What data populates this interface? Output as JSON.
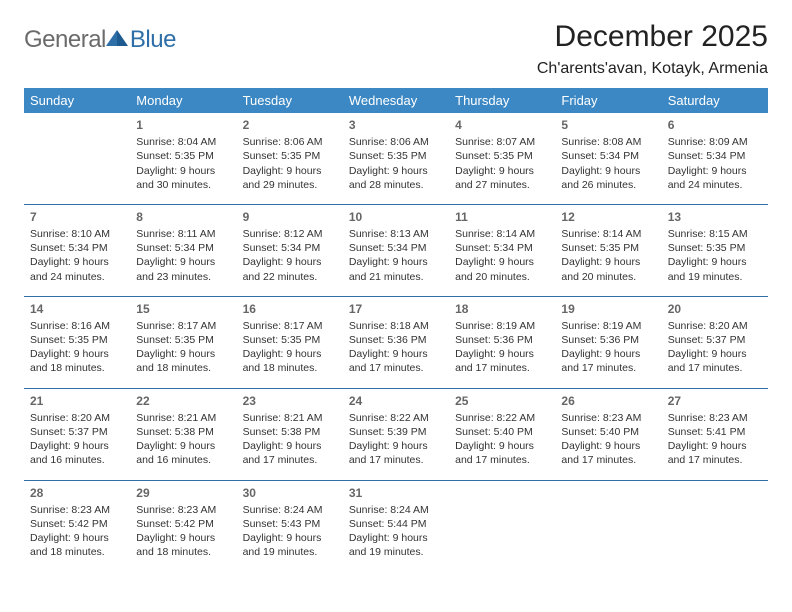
{
  "logo": {
    "general": "General",
    "blue": "Blue"
  },
  "header": {
    "title": "December 2025",
    "subtitle": "Ch'arents'avan, Kotayk, Armenia"
  },
  "styling": {
    "header_bg": "#3b88c4",
    "header_text": "#ffffff",
    "divider_color": "#2f6fa7",
    "daynum_color": "#666666",
    "body_text": "#333333",
    "title_fontsize": 30,
    "subtitle_fontsize": 16,
    "cell_fontsize": 10.5,
    "page_bg": "#ffffff",
    "logo_gray": "#6b6b6b",
    "logo_blue": "#2f6fa7"
  },
  "day_headers": [
    "Sunday",
    "Monday",
    "Tuesday",
    "Wednesday",
    "Thursday",
    "Friday",
    "Saturday"
  ],
  "weeks": [
    [
      null,
      {
        "n": "1",
        "sr": "8:04 AM",
        "ss": "5:35 PM",
        "dl": "9 hours and 30 minutes."
      },
      {
        "n": "2",
        "sr": "8:06 AM",
        "ss": "5:35 PM",
        "dl": "9 hours and 29 minutes."
      },
      {
        "n": "3",
        "sr": "8:06 AM",
        "ss": "5:35 PM",
        "dl": "9 hours and 28 minutes."
      },
      {
        "n": "4",
        "sr": "8:07 AM",
        "ss": "5:35 PM",
        "dl": "9 hours and 27 minutes."
      },
      {
        "n": "5",
        "sr": "8:08 AM",
        "ss": "5:34 PM",
        "dl": "9 hours and 26 minutes."
      },
      {
        "n": "6",
        "sr": "8:09 AM",
        "ss": "5:34 PM",
        "dl": "9 hours and 24 minutes."
      }
    ],
    [
      {
        "n": "7",
        "sr": "8:10 AM",
        "ss": "5:34 PM",
        "dl": "9 hours and 24 minutes."
      },
      {
        "n": "8",
        "sr": "8:11 AM",
        "ss": "5:34 PM",
        "dl": "9 hours and 23 minutes."
      },
      {
        "n": "9",
        "sr": "8:12 AM",
        "ss": "5:34 PM",
        "dl": "9 hours and 22 minutes."
      },
      {
        "n": "10",
        "sr": "8:13 AM",
        "ss": "5:34 PM",
        "dl": "9 hours and 21 minutes."
      },
      {
        "n": "11",
        "sr": "8:14 AM",
        "ss": "5:34 PM",
        "dl": "9 hours and 20 minutes."
      },
      {
        "n": "12",
        "sr": "8:14 AM",
        "ss": "5:35 PM",
        "dl": "9 hours and 20 minutes."
      },
      {
        "n": "13",
        "sr": "8:15 AM",
        "ss": "5:35 PM",
        "dl": "9 hours and 19 minutes."
      }
    ],
    [
      {
        "n": "14",
        "sr": "8:16 AM",
        "ss": "5:35 PM",
        "dl": "9 hours and 18 minutes."
      },
      {
        "n": "15",
        "sr": "8:17 AM",
        "ss": "5:35 PM",
        "dl": "9 hours and 18 minutes."
      },
      {
        "n": "16",
        "sr": "8:17 AM",
        "ss": "5:35 PM",
        "dl": "9 hours and 18 minutes."
      },
      {
        "n": "17",
        "sr": "8:18 AM",
        "ss": "5:36 PM",
        "dl": "9 hours and 17 minutes."
      },
      {
        "n": "18",
        "sr": "8:19 AM",
        "ss": "5:36 PM",
        "dl": "9 hours and 17 minutes."
      },
      {
        "n": "19",
        "sr": "8:19 AM",
        "ss": "5:36 PM",
        "dl": "9 hours and 17 minutes."
      },
      {
        "n": "20",
        "sr": "8:20 AM",
        "ss": "5:37 PM",
        "dl": "9 hours and 17 minutes."
      }
    ],
    [
      {
        "n": "21",
        "sr": "8:20 AM",
        "ss": "5:37 PM",
        "dl": "9 hours and 16 minutes."
      },
      {
        "n": "22",
        "sr": "8:21 AM",
        "ss": "5:38 PM",
        "dl": "9 hours and 16 minutes."
      },
      {
        "n": "23",
        "sr": "8:21 AM",
        "ss": "5:38 PM",
        "dl": "9 hours and 17 minutes."
      },
      {
        "n": "24",
        "sr": "8:22 AM",
        "ss": "5:39 PM",
        "dl": "9 hours and 17 minutes."
      },
      {
        "n": "25",
        "sr": "8:22 AM",
        "ss": "5:40 PM",
        "dl": "9 hours and 17 minutes."
      },
      {
        "n": "26",
        "sr": "8:23 AM",
        "ss": "5:40 PM",
        "dl": "9 hours and 17 minutes."
      },
      {
        "n": "27",
        "sr": "8:23 AM",
        "ss": "5:41 PM",
        "dl": "9 hours and 17 minutes."
      }
    ],
    [
      {
        "n": "28",
        "sr": "8:23 AM",
        "ss": "5:42 PM",
        "dl": "9 hours and 18 minutes."
      },
      {
        "n": "29",
        "sr": "8:23 AM",
        "ss": "5:42 PM",
        "dl": "9 hours and 18 minutes."
      },
      {
        "n": "30",
        "sr": "8:24 AM",
        "ss": "5:43 PM",
        "dl": "9 hours and 19 minutes."
      },
      {
        "n": "31",
        "sr": "8:24 AM",
        "ss": "5:44 PM",
        "dl": "9 hours and 19 minutes."
      },
      null,
      null,
      null
    ]
  ],
  "labels": {
    "sunrise": "Sunrise:",
    "sunset": "Sunset:",
    "daylight": "Daylight:"
  }
}
